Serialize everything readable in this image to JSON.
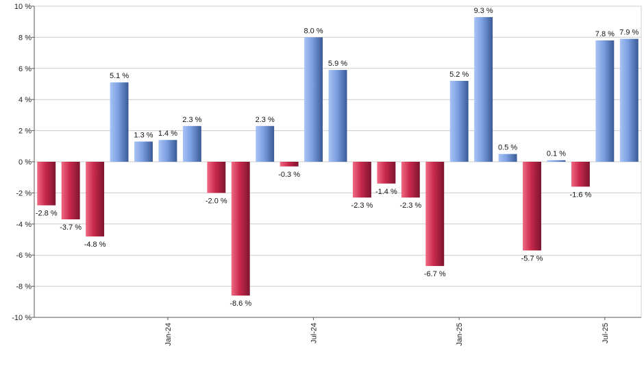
{
  "chart_data": {
    "type": "bar",
    "title": "",
    "xlabel": "",
    "ylabel": "",
    "ylim": [
      -10,
      10
    ],
    "yticks": [
      -10,
      -8,
      -6,
      -4,
      -2,
      0,
      2,
      4,
      6,
      8,
      10
    ],
    "ytick_labels": [
      "-10 %",
      "-8 %",
      "-6 %",
      "-4 %",
      "-2 %",
      "0 %",
      "2 %",
      "4 %",
      "6 %",
      "8 %",
      "10 %"
    ],
    "grid": true,
    "legend": "none",
    "xtick_labels": [
      {
        "label": "Jan-24",
        "index": 5
      },
      {
        "label": "Jul-24",
        "index": 11
      },
      {
        "label": "Jan-25",
        "index": 17
      },
      {
        "label": "Jul-25",
        "index": 23
      }
    ],
    "values": [
      -2.8,
      -3.7,
      -4.8,
      5.1,
      1.3,
      1.4,
      2.3,
      -2.0,
      -8.6,
      2.3,
      -0.3,
      8.0,
      5.9,
      -2.3,
      -1.4,
      -2.3,
      -6.7,
      5.2,
      9.3,
      0.5,
      -5.7,
      0.1,
      -1.6,
      7.8,
      7.9
    ],
    "data_labels": [
      "-2.8 %",
      "-3.7 %",
      "-4.8 %",
      "5.1 %",
      "1.3 %",
      "1.4 %",
      "2.3 %",
      "-2.0 %",
      "-8.6 %",
      "2.3 %",
      "-0.3 %",
      "8.0 %",
      "5.9 %",
      "-2.3 %",
      "-1.4 %",
      "-2.3 %",
      "-6.7 %",
      "5.2 %",
      "9.3 %",
      "0.5 %",
      "-5.7 %",
      "0.1 %",
      "-1.6 %",
      "7.8 %",
      "7.9 %"
    ],
    "colors": {
      "positive_light": "#a9c4f5",
      "positive_mid": "#7a9ee0",
      "positive_dark": "#3a5a96",
      "negative_light": "#f06a84",
      "negative_mid": "#c8284a",
      "negative_dark": "#7e1530",
      "grid": "#cccccc",
      "axis": "#555555"
    }
  }
}
